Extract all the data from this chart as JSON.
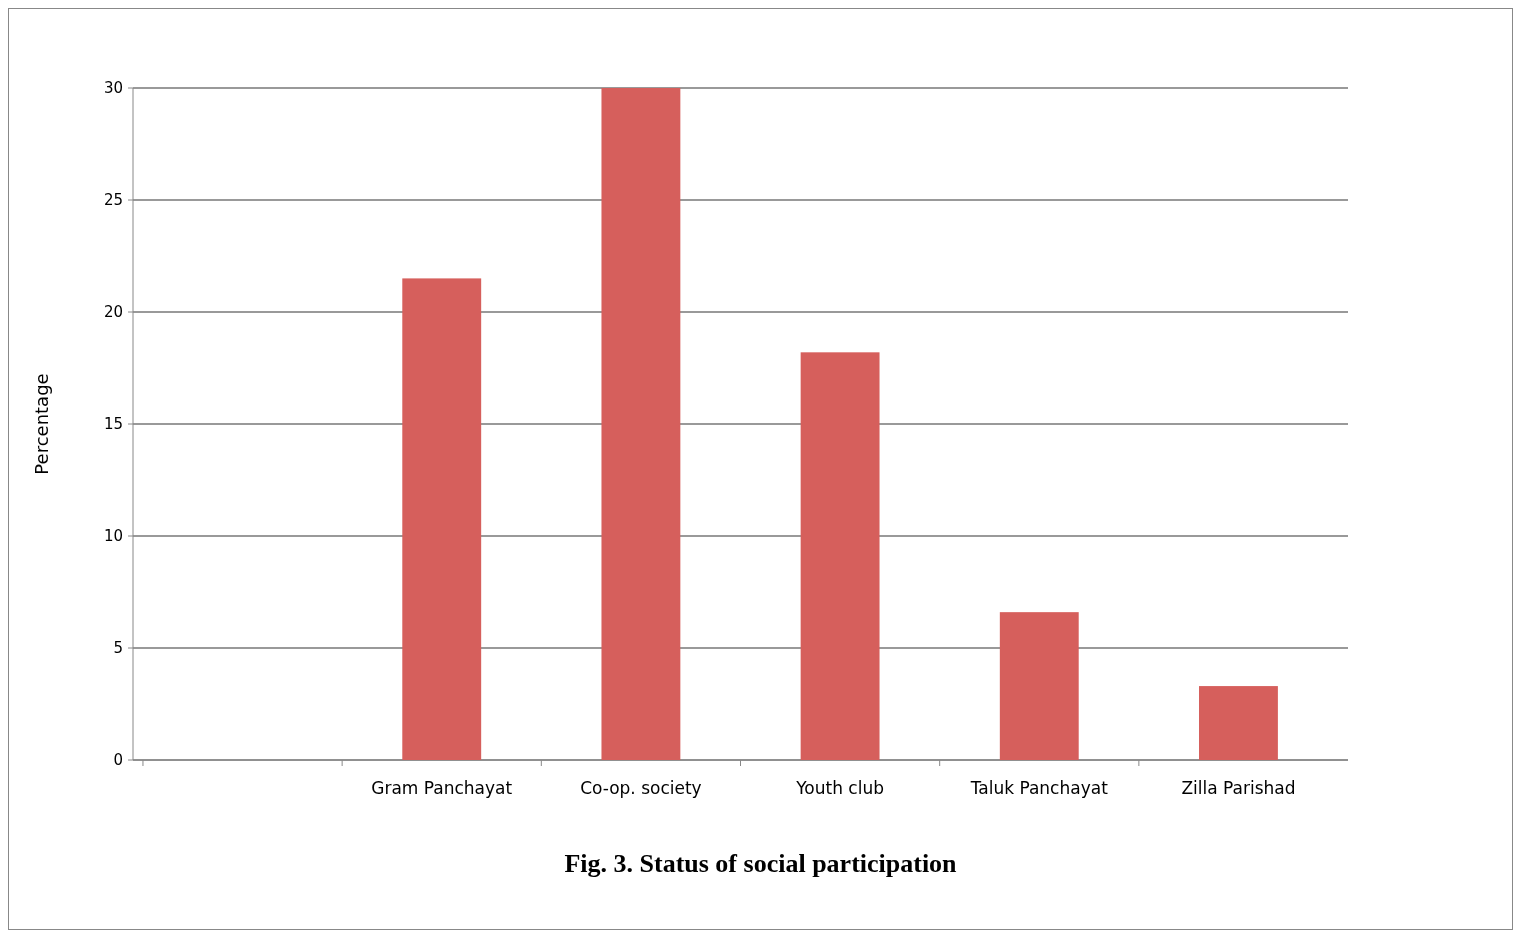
{
  "chart_data": {
    "type": "bar",
    "title": "Fig. 3. Status of social participation",
    "ylabel": "Percentage",
    "categories": [
      null,
      "Gram Panchayat",
      "Co-op. society",
      "Youth club",
      "Taluk Panchayat",
      "Zilla Parishad"
    ],
    "values": [
      null,
      21.5,
      30,
      18.2,
      6.6,
      3.3
    ],
    "color": "#d65f5c",
    "ylim": [
      0,
      30
    ],
    "yticks": [
      0,
      5,
      10,
      15,
      20,
      25,
      30
    ],
    "grid": "y"
  }
}
